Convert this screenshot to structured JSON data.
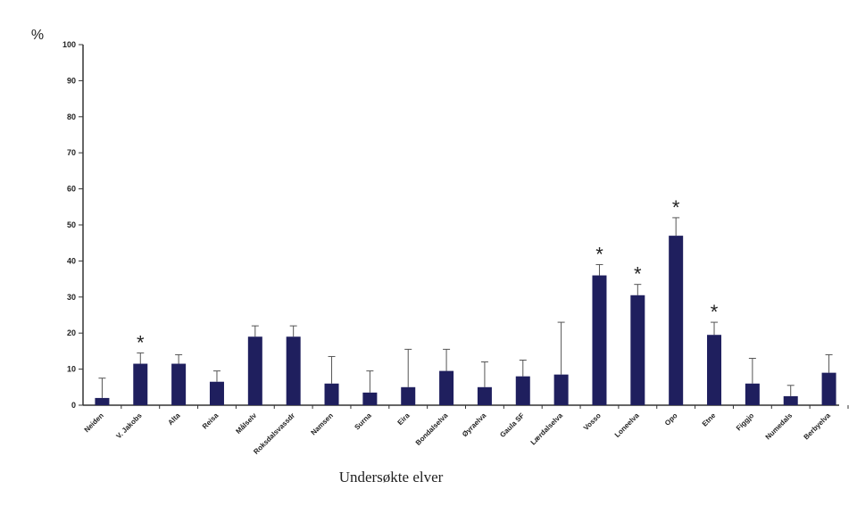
{
  "chart_data": {
    "type": "bar",
    "y_label": "%",
    "x_label": "Undersøkte elver",
    "categories": [
      "Neiden",
      "V. Jakobs",
      "Alta",
      "Reisa",
      "Målselv",
      "Roksdalsvassdr",
      "Namsen",
      "Surna",
      "Eira",
      "Bondalselva",
      "Øyraelva",
      "Gaula SF",
      "Lærdalselva",
      "Vosso",
      "Loneelva",
      "Opo",
      "Etne",
      "Figgjo",
      "Numedals",
      "Berbyelva"
    ],
    "values": [
      2,
      11.5,
      11.5,
      6.5,
      19,
      19,
      6,
      3.5,
      5,
      9.5,
      5,
      8,
      8.5,
      36,
      30.5,
      47,
      19.5,
      6,
      2.5,
      9
    ],
    "errors": [
      5.5,
      3,
      2.5,
      3,
      3,
      3,
      7.5,
      6,
      10.5,
      6,
      7,
      4.5,
      14.5,
      3,
      3,
      5,
      3.5,
      7,
      3,
      5
    ],
    "markers": [
      null,
      "*",
      null,
      null,
      null,
      null,
      null,
      null,
      null,
      null,
      null,
      null,
      null,
      "*",
      "*",
      "*",
      "*",
      null,
      null,
      null
    ],
    "color": "#1f1f5e",
    "ylim": [
      0,
      100
    ],
    "yticks": [
      0,
      10,
      20,
      30,
      40,
      50,
      60,
      70,
      80,
      90,
      100
    ]
  }
}
